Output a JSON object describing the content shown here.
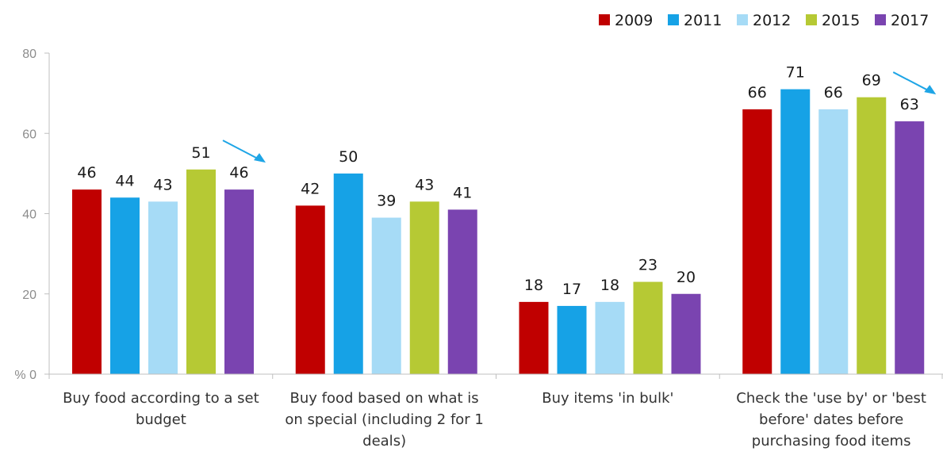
{
  "chart_data": {
    "type": "bar",
    "ylabel": "%",
    "ylim": [
      0,
      80
    ],
    "yticks": [
      0,
      20,
      40,
      60,
      80
    ],
    "grid": false,
    "legend_position": "top-right",
    "categories": [
      [
        "Buy food according to a set",
        "budget"
      ],
      [
        "Buy food based on what is",
        "on special (including 2 for 1",
        "deals)"
      ],
      [
        "Buy items 'in bulk'"
      ],
      [
        "Check the 'use by' or 'best",
        "before' dates before",
        "purchasing food items"
      ]
    ],
    "series": [
      {
        "name": "2009",
        "color": "#c00000",
        "values": [
          46,
          42,
          18,
          66
        ]
      },
      {
        "name": "2011",
        "color": "#16a2e6",
        "values": [
          44,
          50,
          17,
          71
        ]
      },
      {
        "name": "2012",
        "color": "#a6dbf6",
        "values": [
          43,
          39,
          18,
          66
        ]
      },
      {
        "name": "2015",
        "color": "#b6c934",
        "values": [
          51,
          43,
          23,
          69
        ]
      },
      {
        "name": "2017",
        "color": "#7a44b0",
        "values": [
          46,
          41,
          20,
          63
        ]
      }
    ],
    "data_labels": [
      [
        "46",
        "44",
        "43",
        "51",
        "46"
      ],
      [
        "42",
        "50",
        "39",
        "43",
        "41"
      ],
      [
        "18",
        "17",
        "18",
        "23",
        "20"
      ],
      [
        "66",
        "71",
        "66",
        "69",
        "63"
      ]
    ],
    "trend_arrows": [
      {
        "category_index": 0,
        "direction": "down",
        "color": "#1ea5e6"
      },
      {
        "category_index": 3,
        "direction": "down",
        "color": "#1ea5e6"
      }
    ]
  }
}
